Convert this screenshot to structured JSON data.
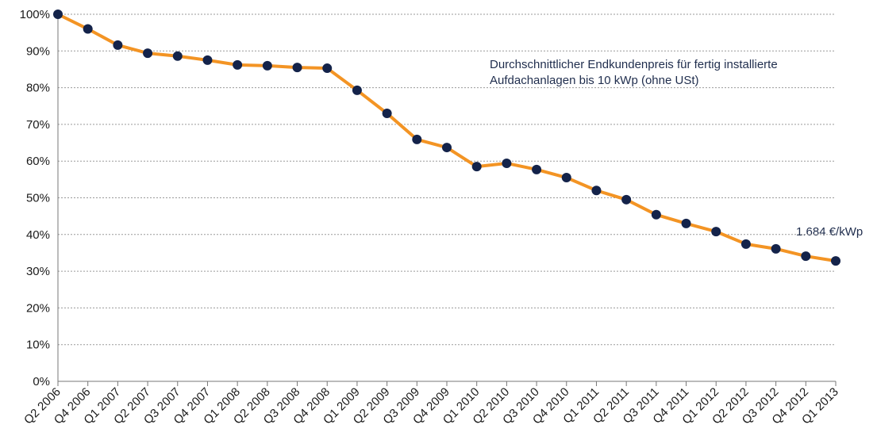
{
  "chart_data": {
    "type": "line",
    "categories": [
      "Q2 2006",
      "Q4 2006",
      "Q1 2007",
      "Q2 2007",
      "Q3 2007",
      "Q4 2007",
      "Q1 2008",
      "Q2 2008",
      "Q3 2008",
      "Q4 2008",
      "Q1 2009",
      "Q2 2009",
      "Q3 2009",
      "Q4 2009",
      "Q1 2010",
      "Q2 2010",
      "Q3 2010",
      "Q4 2010",
      "Q1 2011",
      "Q2 2011",
      "Q3 2011",
      "Q4 2011",
      "Q1 2012",
      "Q2 2012",
      "Q3 2012",
      "Q4 2012",
      "Q1 2013"
    ],
    "series": [
      {
        "color": "#f39424",
        "marker_color": "#14234a",
        "values": [
          100,
          96,
          91.6,
          89.4,
          88.6,
          87.5,
          86.2,
          86,
          85.5,
          85.3,
          79.3,
          73,
          65.9,
          63.7,
          58.5,
          59.4,
          57.7,
          55.5,
          52,
          49.5,
          45.4,
          43,
          40.8,
          37.4,
          36.1,
          34.1,
          32.8
        ]
      }
    ],
    "ylim": [
      0,
      100
    ],
    "yticks": [
      {
        "value": 0,
        "label": "0%"
      },
      {
        "value": 10,
        "label": "10%"
      },
      {
        "value": 20,
        "label": "20%"
      },
      {
        "value": 30,
        "label": "30%"
      },
      {
        "value": 40,
        "label": "40%"
      },
      {
        "value": 50,
        "label": "50%"
      },
      {
        "value": 60,
        "label": "60%"
      },
      {
        "value": 70,
        "label": "70%"
      },
      {
        "value": 80,
        "label": "80%"
      },
      {
        "value": 90,
        "label": "90%"
      },
      {
        "value": 100,
        "label": "100%"
      }
    ],
    "grid": true,
    "annotations": [
      "Durchschnittlicher Endkundenpreis für fertig installierte",
      "Aufdachanlagen bis 10 kWp (ohne USt)",
      "1.684 €/kWp"
    ]
  }
}
